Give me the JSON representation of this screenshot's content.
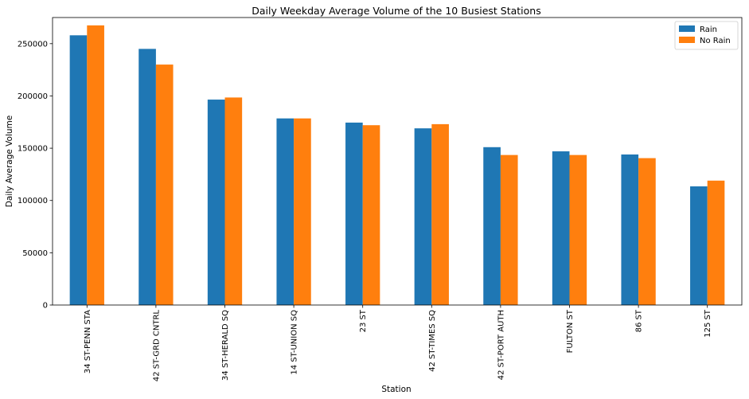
{
  "chart_data": {
    "type": "bar",
    "title": "Daily Weekday Average Volume of the 10 Busiest Stations",
    "xlabel": "Station",
    "ylabel": "Daily Average Volume",
    "categories": [
      "34 ST-PENN STA",
      "42 ST-GRD CNTRL",
      "34 ST-HERALD SQ",
      "14 ST-UNION SQ",
      "23 ST",
      "42 ST-TIMES SQ",
      "42 ST-PORT AUTH",
      "FULTON ST",
      "86 ST",
      "125 ST"
    ],
    "series": [
      {
        "name": "Rain",
        "color": "#1f77b4",
        "values": [
          258000,
          245000,
          196500,
          178500,
          174500,
          169000,
          151000,
          147000,
          144000,
          113500
        ]
      },
      {
        "name": "No Rain",
        "color": "#ff7f0e",
        "values": [
          267500,
          230000,
          198500,
          178500,
          172000,
          173000,
          143500,
          143500,
          140500,
          119000
        ]
      }
    ],
    "ylim": [
      0,
      275000
    ],
    "yticks": [
      0,
      50000,
      100000,
      150000,
      200000,
      250000
    ],
    "ytick_labels": [
      "0",
      "50000",
      "100000",
      "150000",
      "200000",
      "250000"
    ],
    "legend_position": "top-right",
    "grid": false
  }
}
